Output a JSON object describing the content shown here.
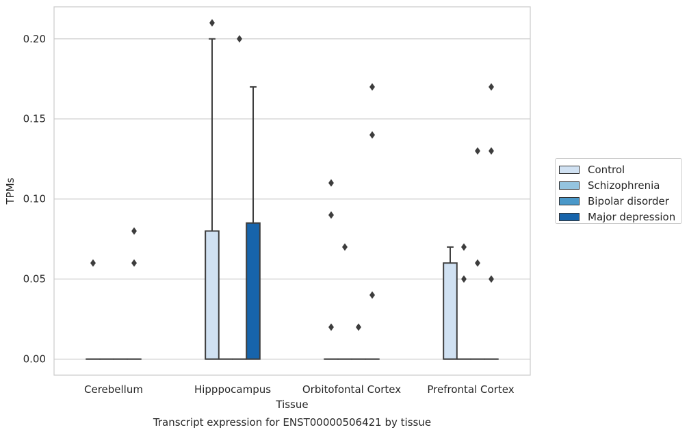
{
  "chart_data": {
    "type": "boxplot",
    "xlabel": "Tissue",
    "ylabel": "TPMs",
    "caption": "Transcript expression for ENST00000506421 by tissue",
    "ylim": [
      -0.01,
      0.22
    ],
    "yticks": [
      0.0,
      0.05,
      0.1,
      0.15,
      0.2
    ],
    "ytick_labels": [
      "0.00",
      "0.05",
      "0.10",
      "0.15",
      "0.20"
    ],
    "categories": [
      "Cerebellum",
      "Hipppocampus",
      "Orbitofontal Cortex",
      "Prefrontal Cortex"
    ],
    "grid": "horizontal",
    "legend_position": "right, outside",
    "series": [
      {
        "name": "Control",
        "color": "#d0e1f2",
        "boxes": [
          {
            "q1": 0,
            "median": 0,
            "q3": 0,
            "whisker_low": 0,
            "whisker_high": 0,
            "outliers": [
              0.06
            ]
          },
          {
            "q1": 0,
            "median": 0,
            "q3": 0.08,
            "whisker_low": 0,
            "whisker_high": 0.2,
            "outliers": [
              0.21
            ]
          },
          {
            "q1": 0,
            "median": 0,
            "q3": 0,
            "whisker_low": 0,
            "whisker_high": 0,
            "outliers": [
              0.02,
              0.09,
              0.11
            ]
          },
          {
            "q1": 0,
            "median": 0,
            "q3": 0.06,
            "whisker_low": 0,
            "whisker_high": 0.07,
            "outliers": []
          }
        ]
      },
      {
        "name": "Schizophrenia",
        "color": "#94c4df",
        "boxes": [
          {
            "q1": 0,
            "median": 0,
            "q3": 0,
            "whisker_low": 0,
            "whisker_high": 0,
            "outliers": []
          },
          {
            "q1": 0,
            "median": 0,
            "q3": 0,
            "whisker_low": 0,
            "whisker_high": 0,
            "outliers": []
          },
          {
            "q1": 0,
            "median": 0,
            "q3": 0,
            "whisker_low": 0,
            "whisker_high": 0,
            "outliers": [
              0.07
            ]
          },
          {
            "q1": 0,
            "median": 0,
            "q3": 0,
            "whisker_low": 0,
            "whisker_high": 0,
            "outliers": [
              0.05,
              0.07
            ]
          }
        ]
      },
      {
        "name": "Bipolar disorder",
        "color": "#4a98c9",
        "boxes": [
          {
            "q1": 0,
            "median": 0,
            "q3": 0,
            "whisker_low": 0,
            "whisker_high": 0,
            "outliers": []
          },
          {
            "q1": 0,
            "median": 0,
            "q3": 0,
            "whisker_low": 0,
            "whisker_high": 0,
            "outliers": [
              0.2
            ]
          },
          {
            "q1": 0,
            "median": 0,
            "q3": 0,
            "whisker_low": 0,
            "whisker_high": 0,
            "outliers": [
              0.02
            ]
          },
          {
            "q1": 0,
            "median": 0,
            "q3": 0,
            "whisker_low": 0,
            "whisker_high": 0,
            "outliers": [
              0.06,
              0.13
            ]
          }
        ]
      },
      {
        "name": "Major depression",
        "color": "#1764ab",
        "boxes": [
          {
            "q1": 0,
            "median": 0,
            "q3": 0,
            "whisker_low": 0,
            "whisker_high": 0,
            "outliers": [
              0.06,
              0.08
            ]
          },
          {
            "q1": 0,
            "median": 0,
            "q3": 0.085,
            "whisker_low": 0,
            "whisker_high": 0.17,
            "outliers": []
          },
          {
            "q1": 0,
            "median": 0,
            "q3": 0,
            "whisker_low": 0,
            "whisker_high": 0,
            "outliers": [
              0.04,
              0.14,
              0.17
            ]
          },
          {
            "q1": 0,
            "median": 0,
            "q3": 0,
            "whisker_low": 0,
            "whisker_high": 0,
            "outliers": [
              0.05,
              0.13,
              0.17
            ]
          }
        ]
      }
    ]
  }
}
